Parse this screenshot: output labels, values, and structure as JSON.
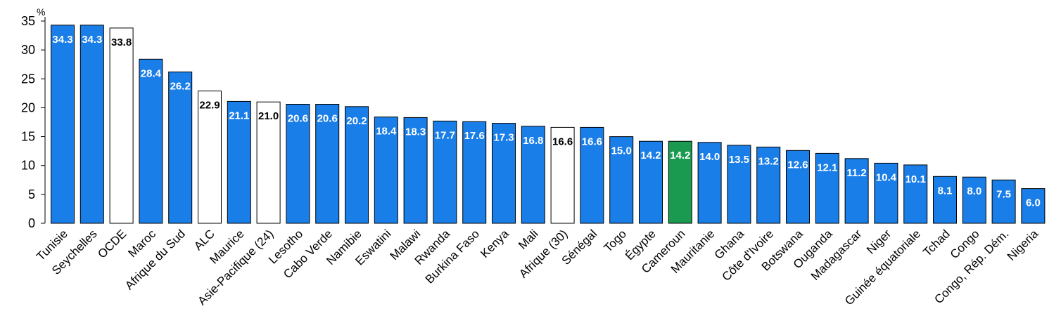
{
  "chart_data": {
    "type": "bar",
    "title": "",
    "xlabel": "",
    "ylabel": "%",
    "ylim": [
      0,
      35
    ],
    "yticks": [
      0,
      5,
      10,
      15,
      20,
      25,
      30,
      35
    ],
    "grid": false,
    "legend": "none",
    "categories": [
      "Tunisie",
      "Seychelles",
      "OCDE",
      "Maroc",
      "Afrique du Sud",
      "ALC",
      "Maurice",
      "Asie-Pacifique (24)",
      "Lesotho",
      "Cabo Verde",
      "Namibie",
      "Eswatini",
      "Malawi",
      "Rwanda",
      "Burkina Faso",
      "Kenya",
      "Mali",
      "Afrique (30)",
      "Sénégal",
      "Togo",
      "Égypte",
      "Cameroun",
      "Mauritanie",
      "Ghana",
      "Côte d'Ivoire",
      "Botswana",
      "Ouganda",
      "Madagascar",
      "Niger",
      "Guinée équatoriale",
      "Tchad",
      "Congo",
      "Congo, Rép. Dém.",
      "Nigeria"
    ],
    "values": [
      34.3,
      34.3,
      33.8,
      28.4,
      26.2,
      22.9,
      21.1,
      21.0,
      20.6,
      20.6,
      20.2,
      18.4,
      18.3,
      17.7,
      17.6,
      17.3,
      16.8,
      16.6,
      16.6,
      15.0,
      14.2,
      14.2,
      14.0,
      13.5,
      13.2,
      12.6,
      12.1,
      11.2,
      10.4,
      10.1,
      8.1,
      8.0,
      7.5,
      6.0
    ],
    "value_labels": [
      "34.3",
      "34.3",
      "33.8",
      "28.4",
      "26.2",
      "22.9",
      "21.1",
      "21.0",
      "20.6",
      "20.6",
      "20.2",
      "18.4",
      "18.3",
      "17.7",
      "17.6",
      "17.3",
      "16.8",
      "16.6",
      "16.6",
      "15.0",
      "14.2",
      "14.2",
      "14.0",
      "13.5",
      "13.2",
      "12.6",
      "12.1",
      "11.2",
      "10.4",
      "10.1",
      "8.1",
      "8.0",
      "7.5",
      "6.0"
    ],
    "bar_styles": [
      "country",
      "country",
      "aggregate",
      "country",
      "country",
      "aggregate",
      "country",
      "aggregate",
      "country",
      "country",
      "country",
      "country",
      "country",
      "country",
      "country",
      "country",
      "country",
      "aggregate",
      "country",
      "country",
      "country",
      "highlight",
      "country",
      "country",
      "country",
      "country",
      "country",
      "country",
      "country",
      "country",
      "country",
      "country",
      "country",
      "country"
    ],
    "colors": {
      "country": "#1a7ee8",
      "aggregate": "#ffffff",
      "highlight": "#1a9a50",
      "outline": "#000000",
      "label_on_fill": "#ffffff",
      "label_on_white": "#000000"
    }
  }
}
